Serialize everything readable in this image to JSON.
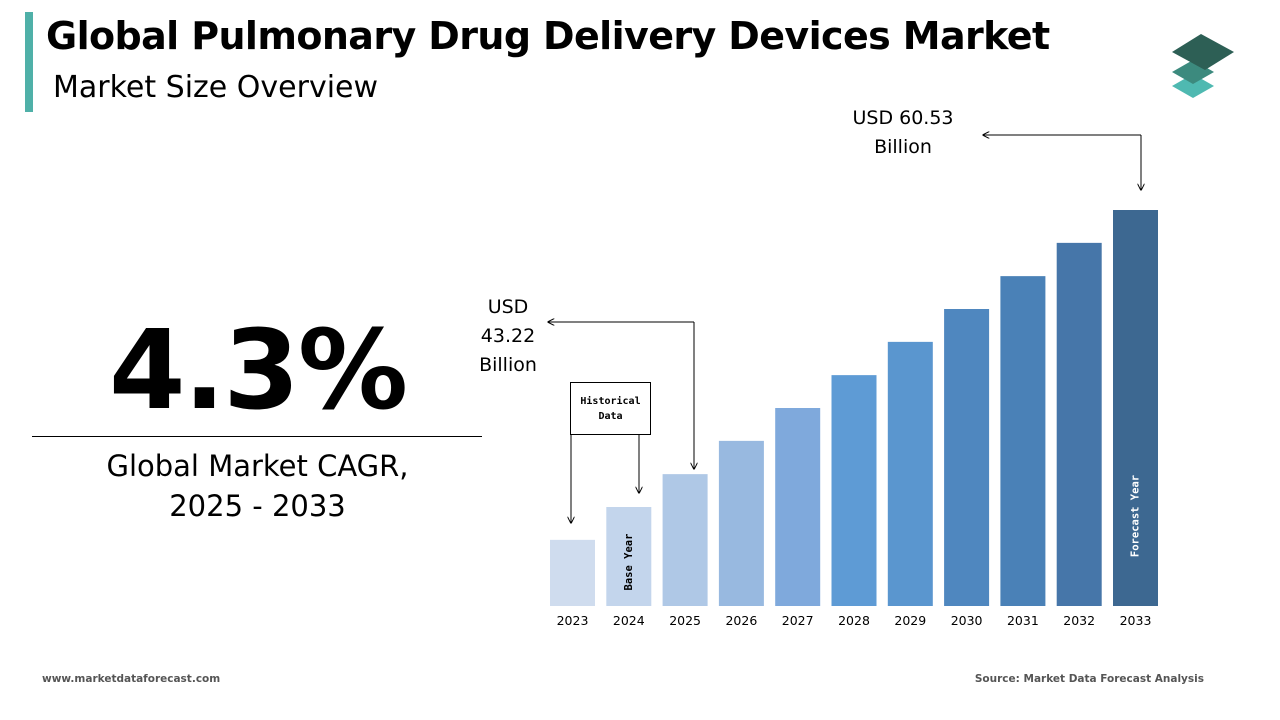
{
  "header": {
    "title": "Global Pulmonary Drug Delivery Devices Market",
    "subtitle": "Market Size Overview"
  },
  "colors": {
    "accent": "#4fb0a8",
    "logo_top": "#2d5f55",
    "logo_mid": "#3c8a7e",
    "logo_bottom": "#4fb9b1"
  },
  "logo": {
    "icon": "stacked-layers-icon"
  },
  "cagr": {
    "value": "4.3%",
    "label": "Global Market CAGR,\n2025 - 2033"
  },
  "callouts": {
    "start_value": "USD\n43.22\nBillion",
    "end_value": "USD 60.53\nBillion",
    "historical": "Historical\nData"
  },
  "chart_data": {
    "type": "bar",
    "title": "",
    "xlabel": "",
    "ylabel": "",
    "categories": [
      "2023",
      "2024",
      "2025",
      "2026",
      "2027",
      "2028",
      "2029",
      "2030",
      "2031",
      "2032",
      "2033"
    ],
    "values": [
      null,
      null,
      43.22,
      null,
      null,
      null,
      null,
      null,
      null,
      null,
      60.53
    ],
    "relative_heights": [
      0.167,
      0.25,
      0.333,
      0.417,
      0.5,
      0.583,
      0.667,
      0.75,
      0.833,
      0.917,
      1.0
    ],
    "colors": [
      "#cfdcee",
      "#c3d5ec",
      "#afc8e6",
      "#98b9e0",
      "#7fa9dc",
      "#5e9bd5",
      "#5a96cf",
      "#4f87bf",
      "#4a81b7",
      "#4676a9",
      "#3d6891"
    ],
    "bar_labels": {
      "1": "Base Year",
      "10": "Forecast Year"
    },
    "legend": "none",
    "grid": false
  },
  "footer": {
    "website": "www.marketdataforecast.com",
    "source": "Source: Market Data Forecast Analysis"
  }
}
